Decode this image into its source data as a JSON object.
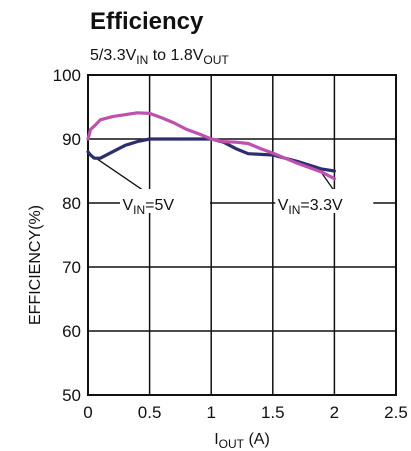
{
  "chart_data": {
    "type": "line",
    "title": "Efficiency",
    "subtitle": {
      "base": "5/3.3V",
      "sub1": "IN",
      "mid": " to 1.8V",
      "sub2": "OUT"
    },
    "xlabel": {
      "base": "I",
      "sub": "OUT",
      "unit": " (A)"
    },
    "ylabel": "EFFICIENCY(%)",
    "xlim": [
      0,
      2.5
    ],
    "ylim": [
      50,
      100
    ],
    "xticks": [
      0,
      0.5,
      1,
      1.5,
      2,
      2.5
    ],
    "xtick_labels": [
      "0",
      "0.5",
      "1",
      "1.5",
      "2",
      "2.5"
    ],
    "yticks": [
      50,
      60,
      70,
      80,
      90,
      100
    ],
    "ytick_labels": [
      "50",
      "60",
      "70",
      "80",
      "90",
      "100"
    ],
    "grid": true,
    "series": [
      {
        "name": "VIN=5V",
        "color": "#2b2d6e",
        "x": [
          0.0,
          0.02,
          0.05,
          0.1,
          0.2,
          0.3,
          0.4,
          0.5,
          0.6,
          0.8,
          1.0,
          1.1,
          1.2,
          1.3,
          1.5,
          1.7,
          1.9,
          2.0
        ],
        "y": [
          88,
          87.5,
          87,
          87,
          88,
          89,
          89.6,
          90,
          90,
          90,
          90,
          89.5,
          88.5,
          87.7,
          87.5,
          86.5,
          85.3,
          85.0
        ]
      },
      {
        "name": "VIN=3.3V",
        "color": "#c050b0",
        "x": [
          0.0,
          0.02,
          0.05,
          0.1,
          0.2,
          0.3,
          0.4,
          0.5,
          0.6,
          0.7,
          0.8,
          0.9,
          1.0,
          1.1,
          1.2,
          1.3,
          1.4,
          1.5,
          1.6,
          1.7,
          1.8,
          1.9,
          2.0
        ],
        "y": [
          90,
          91.5,
          92,
          93,
          93.5,
          93.8,
          94.1,
          94,
          93.3,
          92.5,
          91.5,
          90.8,
          90,
          89.6,
          89.5,
          89.3,
          88.5,
          87.8,
          87,
          86.2,
          85.5,
          84.8,
          83.8
        ]
      }
    ],
    "annotations": [
      {
        "base": "V",
        "sub": "IN",
        "rest": "=5V",
        "series": "VIN=5V"
      },
      {
        "base": "V",
        "sub": "IN",
        "rest": "=3.3V",
        "series": "VIN=3.3V"
      }
    ]
  }
}
